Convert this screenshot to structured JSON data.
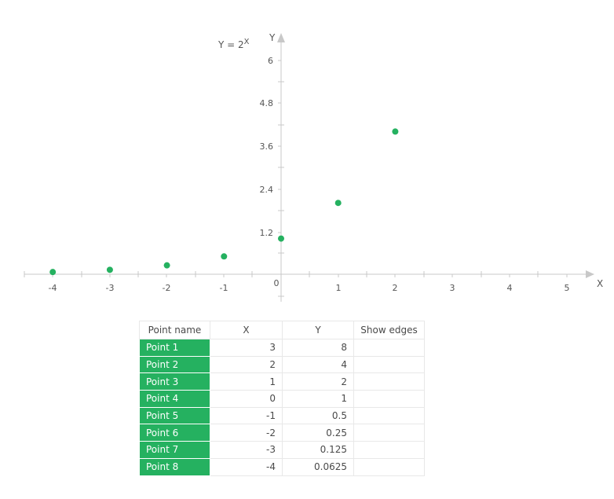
{
  "chart_data": {
    "type": "scatter",
    "title": "Y = 2^X",
    "title_display": {
      "base": "Y = 2",
      "sup": "X"
    },
    "xlabel": "X",
    "ylabel": "Y",
    "xlim": [
      -4.5,
      5.4
    ],
    "ylim": [
      -0.7,
      6.6
    ],
    "x_ticks": [
      -4,
      -3,
      -2,
      -1,
      0,
      1,
      2,
      3,
      4,
      5
    ],
    "y_ticks": [
      1.2,
      2.4,
      3.6,
      4.8,
      6
    ],
    "grid": false,
    "legend": null,
    "series": [
      {
        "name": "Y = 2^X",
        "color": "#25b160",
        "points": [
          {
            "x": -4,
            "y": 0.0625
          },
          {
            "x": -3,
            "y": 0.125
          },
          {
            "x": -2,
            "y": 0.25
          },
          {
            "x": -1,
            "y": 0.5
          },
          {
            "x": 0,
            "y": 1
          },
          {
            "x": 1,
            "y": 2
          },
          {
            "x": 2,
            "y": 4
          }
        ]
      }
    ]
  },
  "chart": {
    "formula_base": "Y = 2",
    "formula_sup": "X",
    "x_axis_label": "X",
    "y_axis_label": "Y",
    "x_tick_labels": [
      "-4",
      "-3",
      "-2",
      "-1",
      "0",
      "1",
      "2",
      "3",
      "4",
      "5"
    ],
    "y_tick_labels": [
      "1.2",
      "2.4",
      "3.6",
      "4.8",
      "6"
    ]
  },
  "table": {
    "headers": [
      "Point name",
      "X",
      "Y",
      "Show edges"
    ],
    "rows": [
      {
        "name": "Point 1",
        "x": "3",
        "y": "8",
        "edges": ""
      },
      {
        "name": "Point 2",
        "x": "2",
        "y": "4",
        "edges": ""
      },
      {
        "name": "Point 3",
        "x": "1",
        "y": "2",
        "edges": ""
      },
      {
        "name": "Point 4",
        "x": "0",
        "y": "1",
        "edges": ""
      },
      {
        "name": "Point 5",
        "x": "-1",
        "y": "0.5",
        "edges": ""
      },
      {
        "name": "Point 6",
        "x": "-2",
        "y": "0.25",
        "edges": ""
      },
      {
        "name": "Point 7",
        "x": "-3",
        "y": "0.125",
        "edges": ""
      },
      {
        "name": "Point 8",
        "x": "-4",
        "y": "0.0625",
        "edges": ""
      }
    ],
    "name_cell_color": "#25b160"
  }
}
